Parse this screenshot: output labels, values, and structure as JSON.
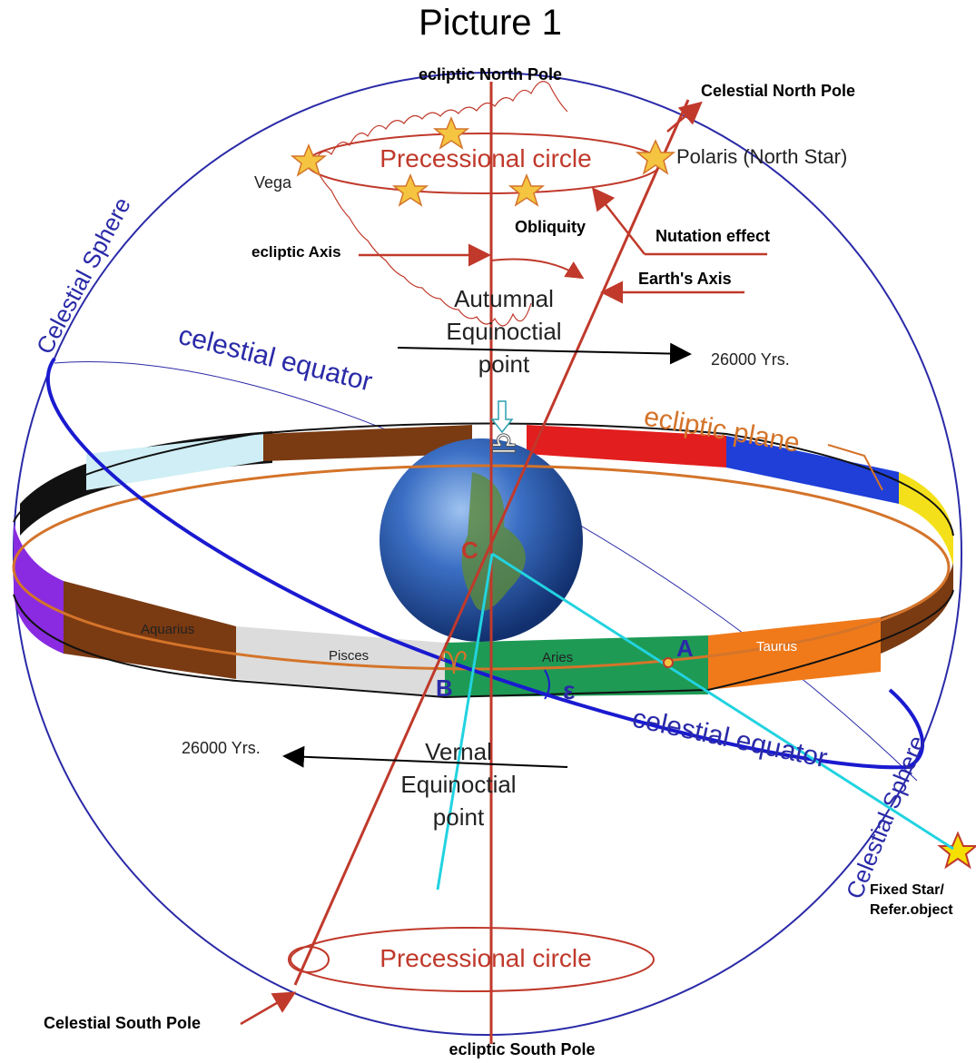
{
  "title": "Picture 1",
  "labels": {
    "ecliptic_north_pole": "ecliptic North Pole",
    "ecliptic_south_pole": "ecliptic South Pole",
    "celestial_north_pole": "Celestial North Pole",
    "celestial_south_pole": "Celestial South Pole",
    "polaris": "Polaris (North Star)",
    "vega": "Vega",
    "precessional_circle_top": "Precessional  circle",
    "precessional_circle_bottom": "Precessional  circle",
    "obliquity": "Obliquity",
    "nutation_effect": "Nutation effect",
    "ecliptic_axis": "ecliptic Axis",
    "earths_axis": "Earth's Axis",
    "autumnal_line1": "Autumnal",
    "autumnal_line2": "Equinoctial",
    "autumnal_line3": "point",
    "years_top": "26000 Yrs.",
    "years_bottom": "26000 Yrs.",
    "celestial_sphere_left": "Celestial Sphere",
    "celestial_sphere_right": "Celestial Sphere",
    "celestial_equator_top": "celestial  equator",
    "celestial_equator_bottom": "celestial  equator",
    "ecliptic_plane": "ecliptic  plane",
    "vernal_line1": "Vernal",
    "vernal_line2": "Equinoctial",
    "vernal_line3": "point",
    "point_a": "A",
    "point_b": "B",
    "point_c": "C",
    "epsilon": "ε",
    "fixed_star_line1": "Fixed Star/",
    "fixed_star_line2": "Refer.object",
    "zodiac_aquarius": "Aquarius",
    "zodiac_pisces": "Pisces",
    "zodiac_aries": "Aries",
    "zodiac_taurus": "Taurus",
    "libra_symbol": "♎",
    "aries_symbol": "♈"
  },
  "colors": {
    "sphere": "#2a2aa8",
    "axis_red": "#c0392b",
    "ecliptic_orange": "#d4742a",
    "cyan_line": "#22d3e0",
    "star_fill": "#f5c542"
  }
}
